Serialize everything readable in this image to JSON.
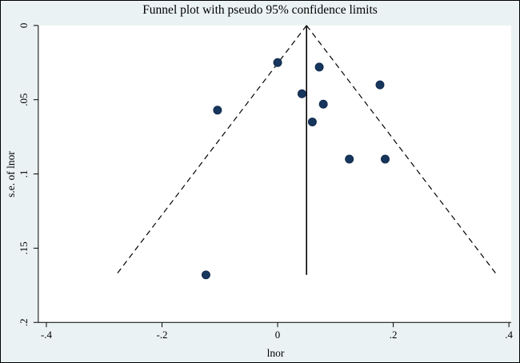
{
  "chart_data": {
    "type": "scatter",
    "title": "Funnel plot with pseudo 95% confidence limits",
    "xlabel": "lnor",
    "ylabel": "s.e. of lnor",
    "xlim": [
      -0.414,
      0.404
    ],
    "ylim": [
      0,
      0.2
    ],
    "y_inverted": true,
    "grid": false,
    "x_ticks": [
      {
        "v": -0.4,
        "label": "-.4"
      },
      {
        "v": -0.2,
        "label": "-.2"
      },
      {
        "v": 0,
        "label": "0"
      },
      {
        "v": 0.2,
        "label": ".2"
      },
      {
        "v": 0.4,
        "label": ".4"
      }
    ],
    "y_ticks": [
      {
        "v": 0,
        "label": "0"
      },
      {
        "v": 0.05,
        "label": ".05"
      },
      {
        "v": 0.1,
        "label": ".1"
      },
      {
        "v": 0.15,
        "label": ".15"
      },
      {
        "v": 0.2,
        "label": ".2"
      }
    ],
    "pooled_estimate_x": 0.05,
    "funnel_max_se": 0.168,
    "ci_multiplier": 1.96,
    "points": [
      {
        "x": 0.0,
        "y": 0.025
      },
      {
        "x": 0.072,
        "y": 0.028
      },
      {
        "x": 0.177,
        "y": 0.04
      },
      {
        "x": 0.042,
        "y": 0.046
      },
      {
        "x": -0.104,
        "y": 0.057
      },
      {
        "x": 0.079,
        "y": 0.053
      },
      {
        "x": 0.06,
        "y": 0.065
      },
      {
        "x": 0.124,
        "y": 0.09
      },
      {
        "x": 0.186,
        "y": 0.09
      },
      {
        "x": -0.124,
        "y": 0.168
      }
    ],
    "colors": {
      "point_fill": "#17365d",
      "point_stroke": "#102a4c",
      "figure_background": "#eaf2f3",
      "plot_background": "#ffffff",
      "axis_line": "#000000",
      "funnel_line": "#000000"
    }
  }
}
